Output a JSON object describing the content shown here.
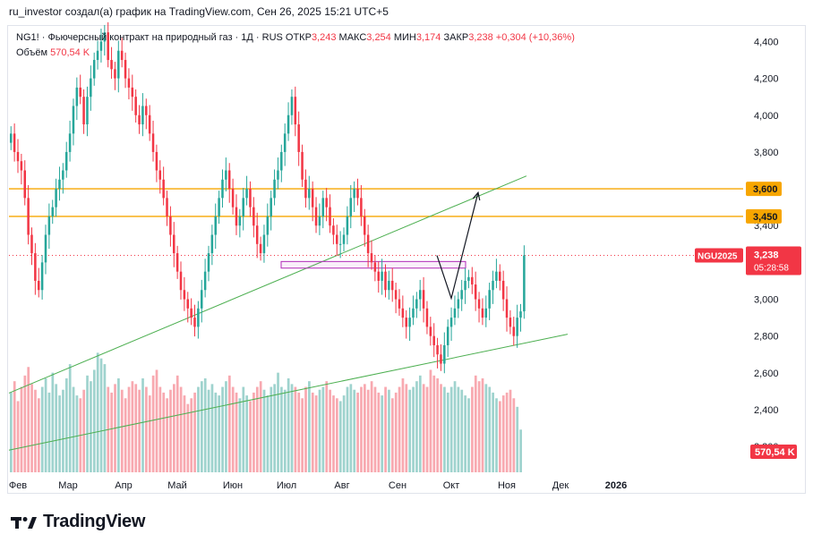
{
  "header": {
    "published_by": "ru_investor создал(а) график на TradingView.com, Сен 26, 2025 15:21 UTC+5"
  },
  "legend": {
    "symbol_line": "NG1! · Фьючерсный контракт на природный газ · 1Д · RUS",
    "open_label": "ОТКР",
    "open": "3,243",
    "high_label": "МАКС",
    "high": "3,254",
    "low_label": "МИН",
    "low": "3,174",
    "close_label": "ЗАКР",
    "close": "3,238",
    "change": "+0,304 (+10,36%)",
    "volume_label": "Объём",
    "volume": "570,54 K"
  },
  "brand": {
    "name": "TradingView"
  },
  "colors": {
    "up": "#26a69a",
    "down": "#f23645",
    "vol_up": "#9fd3ce",
    "vol_down": "#f8a9b0",
    "orange": "#f7a600",
    "trend": "#4caf50",
    "box": "#b02ab7"
  },
  "chart_data": {
    "type": "candlestick",
    "title": "NG1! Фьючерсный контракт на природный газ · 1Д",
    "ylim": [
      2050,
      4480
    ],
    "y_ticks": [
      {
        "v": 4400,
        "label": "4,400"
      },
      {
        "v": 4200,
        "label": "4,200"
      },
      {
        "v": 4000,
        "label": "4,000"
      },
      {
        "v": 3800,
        "label": "3,800"
      },
      {
        "v": 3400,
        "label": "3,400"
      },
      {
        "v": 3000,
        "label": "3,000"
      },
      {
        "v": 2800,
        "label": "2,800"
      },
      {
        "v": 2600,
        "label": "2,600"
      },
      {
        "v": 2400,
        "label": "2,400"
      },
      {
        "v": 2200,
        "label": "2,200"
      }
    ],
    "x_total_days": 410,
    "x_ticks": [
      {
        "d": 5,
        "label": "Фев"
      },
      {
        "d": 33,
        "label": "Мар"
      },
      {
        "d": 64,
        "label": "Апр"
      },
      {
        "d": 94,
        "label": "Май"
      },
      {
        "d": 125,
        "label": "Июн"
      },
      {
        "d": 155,
        "label": "Июл"
      },
      {
        "d": 186,
        "label": "Авг"
      },
      {
        "d": 217,
        "label": "Сен"
      },
      {
        "d": 247,
        "label": "Окт"
      },
      {
        "d": 278,
        "label": "Ноя"
      },
      {
        "d": 308,
        "label": "Дек"
      },
      {
        "d": 339,
        "label": "2026"
      }
    ],
    "closes": [
      3900,
      3800,
      3750,
      3700,
      3550,
      3350,
      3250,
      3100,
      3050,
      3200,
      3350,
      3450,
      3500,
      3600,
      3650,
      3700,
      3800,
      3900,
      4050,
      4150,
      4100,
      3950,
      4100,
      4200,
      4300,
      4350,
      4400,
      4450,
      4300,
      4250,
      4200,
      4350,
      4300,
      4200,
      4150,
      4100,
      4000,
      3950,
      4050,
      4000,
      3900,
      3800,
      3700,
      3650,
      3550,
      3450,
      3350,
      3250,
      3150,
      3050,
      3000,
      2950,
      2900,
      2850,
      2950,
      3050,
      3150,
      3250,
      3350,
      3450,
      3550,
      3650,
      3700,
      3600,
      3500,
      3400,
      3450,
      3550,
      3600,
      3500,
      3400,
      3300,
      3250,
      3350,
      3450,
      3550,
      3650,
      3700,
      3800,
      3900,
      4000,
      4100,
      3950,
      3800,
      3650,
      3550,
      3600,
      3500,
      3400,
      3450,
      3550,
      3500,
      3400,
      3350,
      3300,
      3300,
      3350,
      3450,
      3550,
      3600,
      3550,
      3450,
      3350,
      3250,
      3200,
      3150,
      3100,
      3150,
      3050,
      3100,
      3050,
      3000,
      2950,
      2900,
      2850,
      2900,
      2950,
      3000,
      3050,
      2950,
      2850,
      2800,
      2750,
      2700,
      2650,
      2750,
      2850,
      2900,
      2950,
      3000,
      3050,
      3100,
      3120,
      3080,
      3000,
      2950,
      2900,
      2950,
      3050,
      3100,
      3150,
      3100,
      3000,
      2900,
      2850,
      2800,
      2900,
      2934,
      3238
    ],
    "volumes": [
      280,
      320,
      250,
      300,
      340,
      370,
      310,
      290,
      260,
      300,
      330,
      280,
      350,
      310,
      270,
      290,
      330,
      380,
      300,
      270,
      260,
      290,
      340,
      320,
      360,
      420,
      400,
      380,
      300,
      280,
      310,
      330,
      290,
      260,
      300,
      320,
      310,
      290,
      330,
      300,
      270,
      340,
      360,
      300,
      280,
      260,
      290,
      310,
      340,
      300,
      270,
      240,
      260,
      280,
      300,
      320,
      330,
      290,
      310,
      280,
      270,
      300,
      320,
      340,
      300,
      280,
      260,
      300,
      270,
      250,
      280,
      300,
      320,
      290,
      270,
      300,
      310,
      350,
      300,
      290,
      330,
      310,
      300,
      280,
      260,
      300,
      320,
      280,
      270,
      290,
      300,
      320,
      290,
      270,
      260,
      250,
      270,
      300,
      310,
      290,
      280,
      300,
      310,
      290,
      320,
      300,
      280,
      270,
      300,
      290,
      260,
      280,
      300,
      330,
      310,
      290,
      300,
      320,
      340,
      310,
      300,
      360,
      340,
      330,
      310,
      300,
      280,
      300,
      320,
      300,
      290,
      270,
      260,
      300,
      340,
      320,
      330,
      310,
      300,
      280,
      260,
      250,
      270,
      280,
      290,
      260,
      230,
      150
    ],
    "hlines": [
      {
        "v": 3600,
        "label": "3,600"
      },
      {
        "v": 3450,
        "label": "3,450"
      }
    ],
    "last_price": {
      "v": 3238,
      "symbol": "NGU2025",
      "price": "3,238",
      "countdown": "05:28:58"
    },
    "volume_badge": "570,54 K",
    "trendlines": [
      {
        "d1": 0,
        "p1": 2490,
        "d2": 289,
        "p2": 3670
      },
      {
        "d1": 0,
        "p1": 2180,
        "d2": 312,
        "p2": 2810
      }
    ],
    "box": {
      "d1": 152,
      "d2": 255,
      "p1": 3169,
      "p2": 3205
    },
    "forecast_path": [
      {
        "d": 239,
        "p": 3238
      },
      {
        "d": 247,
        "p": 3005
      },
      {
        "d": 262,
        "p": 3580
      }
    ],
    "ohlc": {
      "open": 3243,
      "high": 3254,
      "low": 3174,
      "close": 3238
    }
  }
}
